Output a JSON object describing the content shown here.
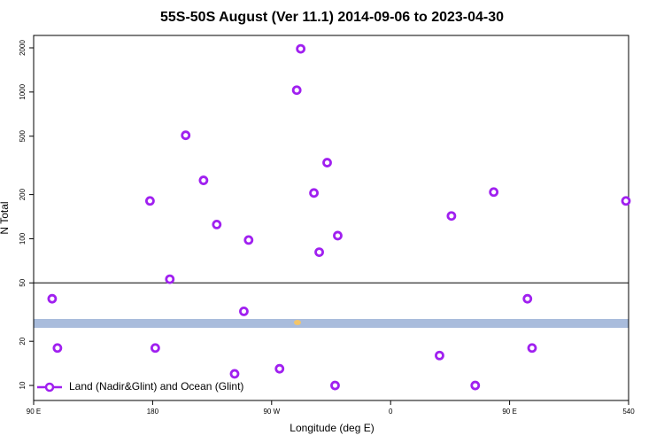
{
  "chart_data": {
    "type": "scatter",
    "title": "55S-50S August (Ver 11.1)   2014-09-06 to 2023-04-30",
    "x_label": "Longitude (deg E)",
    "y_label": "N Total",
    "log_y": true,
    "hline": 50,
    "legend": "bottom-left",
    "xlim": [
      90,
      540
    ],
    "ylim": [
      7.9,
      2430
    ],
    "xticks": [
      {
        "value": 90,
        "label": "90 E"
      },
      180,
      {
        "value": 270,
        "label": "90 W"
      },
      {
        "value": 360,
        "label": "0"
      },
      {
        "value": 450,
        "label": "90 E"
      },
      540
    ],
    "yticks": [
      10,
      20,
      50,
      100,
      200,
      500,
      1000,
      2000
    ],
    "series": [
      {
        "name": "Land (Nadir&Glint) and Ocean (Glint)",
        "color": "#a020f0",
        "x": [
          104,
          108,
          178,
          182,
          193,
          205,
          218.5,
          228.5,
          242,
          249,
          252.6,
          276,
          289,
          292,
          302,
          306,
          312,
          318,
          320,
          397,
          406,
          424,
          438,
          463.5,
          467,
          538
        ],
        "values": [
          39,
          18,
          181,
          18,
          53,
          507,
          250,
          125,
          12,
          32,
          98,
          13,
          1030,
          1970,
          205,
          81,
          330,
          10,
          105,
          16,
          143,
          10,
          208,
          39,
          18,
          181
        ]
      }
    ]
  }
}
